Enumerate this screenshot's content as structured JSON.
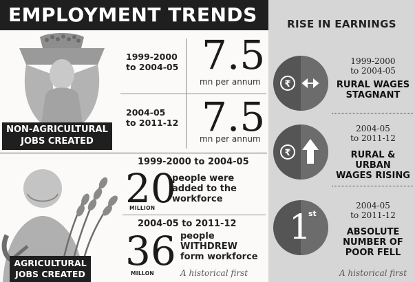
{
  "title": "EMPLOYMENT TRENDS",
  "non_agricultural": {
    "label_line1": "NON-AGRICULTURAL",
    "label_line2": "JOBS CREATED",
    "rows": [
      {
        "period_line1": "1999-2000",
        "period_line2": "to 2004-05",
        "value": "7.5",
        "unit": "mn per annum"
      },
      {
        "period_line1": "2004-05",
        "period_line2": "to 2011-12",
        "value": "7.5",
        "unit": "mn per annum"
      }
    ]
  },
  "agricultural": {
    "label_line1": "AGRICULTURAL",
    "label_line2": "JOBS CREATED",
    "rows": [
      {
        "period": "1999-2000 to 2004-05",
        "value": "20",
        "value_unit": "MILLION",
        "desc_line1": "people were",
        "desc_line2": "added to the",
        "desc_line3": "workforce"
      },
      {
        "period": "2004-05 to 2011-12",
        "value": "36",
        "value_unit": "MILLON",
        "desc_line1": "people",
        "desc_line2": "WITHDREW",
        "desc_line3": "form workforce",
        "note": "A historical first"
      }
    ]
  },
  "earnings": {
    "title": "RISE IN EARNINGS",
    "items": [
      {
        "period_line1": "1999-2000",
        "period_line2": "to 2004-05",
        "head_line1": "RURAL WAGES",
        "head_line2": "STAGNANT",
        "symbol": "₹",
        "icon": "horizontal-double-arrow"
      },
      {
        "period_line1": "2004-05",
        "period_line2": "to 2011-12",
        "head_line1": "RURAL & URBAN",
        "head_line2": "WAGES RISING",
        "symbol": "₹",
        "icon": "up-arrow"
      },
      {
        "period_line1": "2004-05",
        "period_line2": "to 2011-12",
        "head_line1": "ABSOLUTE",
        "head_line2": "NUMBER OF",
        "head_line3": "POOR FELL",
        "rank": "1",
        "rank_suffix": "st",
        "note": "A historical first"
      }
    ]
  },
  "colors": {
    "dark": "#1f1f1f",
    "right_panel": "#d6d6d6",
    "circle": "#555555",
    "illustration": "#b3b3b3"
  }
}
